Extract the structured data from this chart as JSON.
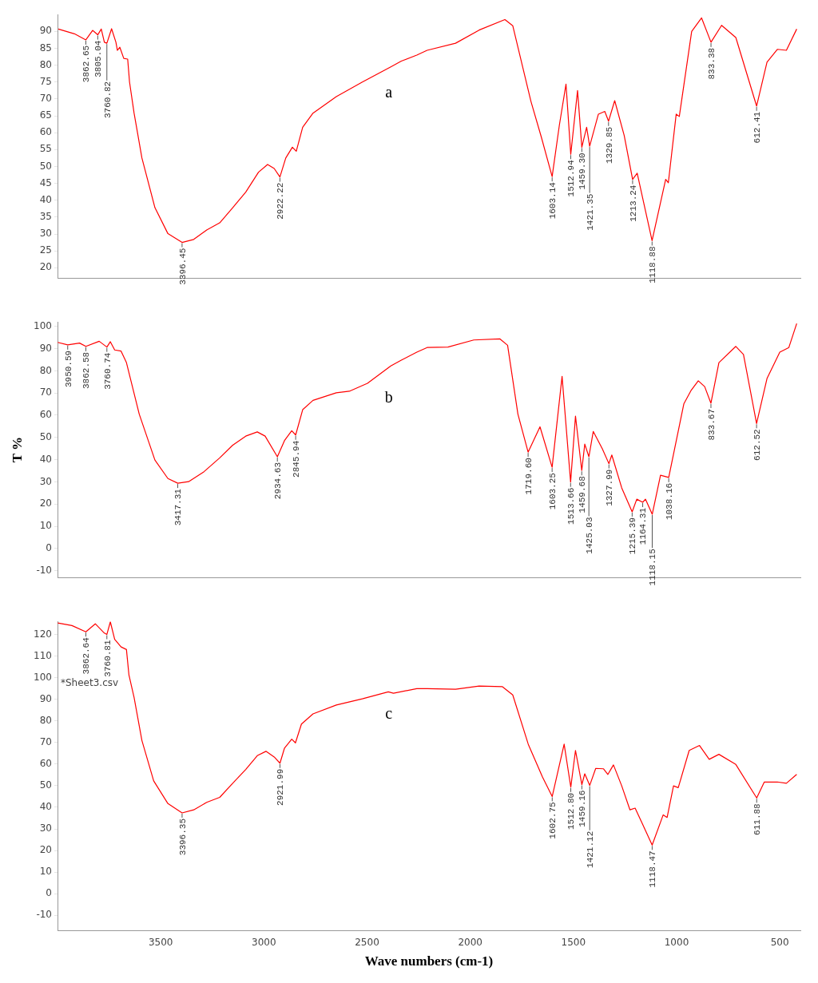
{
  "chart_data": [
    {
      "type": "line",
      "xlim": [
        4000,
        400
      ],
      "ylim": [
        17,
        95
      ],
      "yticks": [
        20,
        25,
        30,
        35,
        40,
        45,
        50,
        55,
        60,
        65,
        70,
        75,
        80,
        85,
        90
      ],
      "tick_labels": "y",
      "x": [
        3996,
        3918,
        3862.65,
        3830,
        3805.04,
        3788,
        3773,
        3760.82,
        3738,
        3717,
        3710,
        3698,
        3679,
        3660,
        3651,
        3629,
        3591,
        3528,
        3465,
        3396.45,
        3340,
        3277,
        3214,
        3151,
        3088,
        3026,
        2982,
        2950,
        2922.22,
        2894,
        2862,
        2843,
        2812,
        2762,
        2649,
        2523,
        2385,
        2334,
        2259,
        2209,
        2071,
        1957,
        1832,
        1794,
        1706,
        1656,
        1603.14,
        1568,
        1536,
        1512.94,
        1480,
        1459.3,
        1436,
        1421.35,
        1379,
        1348,
        1329.85,
        1300,
        1254,
        1213.24,
        1191,
        1118.88,
        1053,
        1040,
        1002,
        987,
        927,
        879,
        833.38,
        782,
        713,
        612.41,
        562,
        512,
        468,
        418
      ],
      "series": [
        {
          "color": "#ff0000",
          "values": [
            90.7,
            89.3,
            87.5,
            90.3,
            89,
            90.7,
            86.8,
            86.5,
            90.8,
            86.8,
            84.4,
            85.3,
            82,
            81.8,
            75,
            65.8,
            52.5,
            37.8,
            30.1,
            27.5,
            28.4,
            31.2,
            33.3,
            37.8,
            42.4,
            48.3,
            50.6,
            49.4,
            46.9,
            52.5,
            55.7,
            54.5,
            61.6,
            65.8,
            70.7,
            75,
            79.5,
            81.2,
            83,
            84.4,
            86.5,
            90.4,
            93.5,
            91.7,
            69.3,
            58.8,
            47,
            62.3,
            74.4,
            53.6,
            72.5,
            55.7,
            61.6,
            56,
            65.5,
            66.3,
            63.4,
            69.5,
            59.2,
            46.2,
            48,
            28,
            46.2,
            45.2,
            65.5,
            64.8,
            90,
            94,
            86.8,
            91.8,
            88.2,
            67.9,
            80.9,
            84.7,
            84.4,
            90.7
          ]
        }
      ],
      "annotations": [
        "a",
        {
          "text": "3862.65",
          "x": 3862.65,
          "y": 87.5
        },
        {
          "text": "3805.04",
          "x": 3805.04,
          "y": 89
        },
        {
          "text": "3760.82",
          "x": 3760.82,
          "y": 86.5
        },
        {
          "text": "3396.45",
          "x": 3396.45,
          "y": 27.5
        },
        {
          "text": "2922.22",
          "x": 2922.22,
          "y": 46.9
        },
        {
          "text": "1603.14",
          "x": 1603.14,
          "y": 47
        },
        {
          "text": "1512.94",
          "x": 1512.94,
          "y": 53.6
        },
        {
          "text": "1459.30",
          "x": 1459.3,
          "y": 55.7
        },
        {
          "text": "1421.35",
          "x": 1421.35,
          "y": 56
        },
        {
          "text": "1329.85",
          "x": 1329.85,
          "y": 63.4
        },
        {
          "text": "1213.24",
          "x": 1213.24,
          "y": 46.2
        },
        {
          "text": "1118.88",
          "x": 1118.88,
          "y": 28
        },
        {
          "text": "833.38",
          "x": 833.38,
          "y": 86.8
        },
        {
          "text": "612.41",
          "x": 612.41,
          "y": 67.9
        }
      ]
    },
    {
      "type": "line",
      "xlim": [
        4000,
        400
      ],
      "ylim": [
        -13,
        102
      ],
      "yticks": [
        -10,
        0,
        10,
        20,
        30,
        40,
        50,
        60,
        70,
        80,
        90,
        100
      ],
      "tick_labels": "y",
      "ylabel": "T %",
      "x": [
        3999,
        3950.59,
        3893,
        3862.58,
        3798,
        3760.74,
        3744,
        3723,
        3692,
        3666,
        3604,
        3528,
        3465,
        3417.31,
        3365,
        3290,
        3214,
        3151,
        3088,
        3032,
        2994,
        2934.63,
        2900,
        2865,
        2845.94,
        2812,
        2762,
        2649,
        2586,
        2498,
        2385,
        2334,
        2259,
        2209,
        2108,
        1983,
        1857,
        1819,
        1769,
        1719.6,
        1662,
        1603.25,
        1555,
        1513.66,
        1490,
        1459.68,
        1445,
        1425.03,
        1404,
        1360,
        1327.99,
        1314,
        1266,
        1215.39,
        1193,
        1164.31,
        1151,
        1118.15,
        1078,
        1038.16,
        965,
        929,
        895,
        864,
        833.67,
        795,
        713,
        676,
        612.52,
        562,
        500,
        456,
        418
      ],
      "series": [
        {
          "color": "#ff0000",
          "values": [
            92.8,
            91.7,
            92.5,
            91,
            93.3,
            90.7,
            93.1,
            89.4,
            88.9,
            83.7,
            60.5,
            39.8,
            31.5,
            29.4,
            30.1,
            34.6,
            40.8,
            46.5,
            50.6,
            52.5,
            50.6,
            41.3,
            48.6,
            53,
            51.1,
            62.5,
            66.7,
            70.1,
            70.8,
            74.4,
            82.2,
            84.8,
            88.4,
            90.5,
            90.7,
            93.9,
            94.4,
            91.5,
            60.5,
            43.4,
            54.8,
            36.6,
            77.5,
            29.9,
            59.6,
            35.1,
            47,
            41.3,
            52.7,
            44.9,
            38.2,
            42.1,
            27.3,
            16.5,
            22.2,
            20.8,
            22.2,
            15.4,
            33,
            32,
            65.1,
            71.3,
            75.5,
            72.9,
            65.4,
            83.7,
            91,
            87.4,
            56.3,
            76.5,
            88.4,
            90.5,
            101.3
          ]
        }
      ],
      "annotations": [
        "b",
        {
          "text": "3950.59",
          "x": 3950.59,
          "y": 91.7
        },
        {
          "text": "3862.58",
          "x": 3862.58,
          "y": 91
        },
        {
          "text": "3760.74",
          "x": 3760.74,
          "y": 90.7
        },
        {
          "text": "3417.31",
          "x": 3417.31,
          "y": 29.4
        },
        {
          "text": "2934.63",
          "x": 2934.63,
          "y": 41.3
        },
        {
          "text": "2845.94",
          "x": 2845.94,
          "y": 51.1
        },
        {
          "text": "1719.60",
          "x": 1719.6,
          "y": 43.4
        },
        {
          "text": "1603.25",
          "x": 1603.25,
          "y": 36.6
        },
        {
          "text": "1513.66",
          "x": 1513.66,
          "y": 29.9
        },
        {
          "text": "1459.68",
          "x": 1459.68,
          "y": 35.1
        },
        {
          "text": "1425.03",
          "x": 1425.03,
          "y": 41.3
        },
        {
          "text": "1327.99",
          "x": 1327.99,
          "y": 38.2
        },
        {
          "text": "1215.39",
          "x": 1215.39,
          "y": 16.5
        },
        {
          "text": "1164.31",
          "x": 1164.31,
          "y": 20.8
        },
        {
          "text": "1118.15",
          "x": 1118.15,
          "y": 15.4
        },
        {
          "text": "1038.16",
          "x": 1038.16,
          "y": 32
        },
        {
          "text": "833.67",
          "x": 833.67,
          "y": 65.4
        },
        {
          "text": "612.52",
          "x": 612.52,
          "y": 56.3
        }
      ]
    },
    {
      "type": "line",
      "xlim": [
        4000,
        400
      ],
      "ylim": [
        -17,
        126
      ],
      "yticks": [
        -10,
        0,
        10,
        20,
        30,
        40,
        50,
        60,
        70,
        80,
        90,
        100,
        110,
        120
      ],
      "xticks": [
        3500,
        3000,
        2500,
        2000,
        1500,
        1000,
        500
      ],
      "xlabel": "Wave numbers (cm-1)",
      "x": [
        3999,
        3930,
        3862.64,
        3817,
        3773,
        3760.81,
        3744,
        3723,
        3692,
        3666,
        3654,
        3629,
        3591,
        3534,
        3465,
        3396.35,
        3340,
        3277,
        3214,
        3151,
        3088,
        3032,
        2990,
        2950,
        2921.99,
        2900,
        2865,
        2847,
        2818,
        2762,
        2649,
        2523,
        2397,
        2372,
        2259,
        2209,
        2071,
        1957,
        1844,
        1794,
        1719,
        1650,
        1602.75,
        1545,
        1512.8,
        1490,
        1459.16,
        1445,
        1421.12,
        1392,
        1354,
        1333,
        1306,
        1266,
        1226,
        1201,
        1166,
        1118.47,
        1065,
        1046,
        1015,
        992,
        939,
        889,
        842,
        795,
        713,
        611.88,
        575,
        512,
        468,
        418
      ],
      "series": [
        {
          "color": "#ff0000",
          "values": [
            125.3,
            124.1,
            121.2,
            124.9,
            120.6,
            120,
            125.8,
            117.7,
            114.2,
            113,
            101.3,
            90.8,
            70.9,
            52.2,
            41.7,
            37.4,
            38.8,
            42.3,
            44.6,
            51.1,
            57.5,
            63.9,
            65.9,
            63.3,
            60.4,
            67.4,
            71.5,
            69.8,
            78.5,
            83.2,
            87.3,
            90.2,
            93.4,
            92.8,
            94.9,
            94.9,
            94.6,
            96.1,
            95.8,
            92,
            69.2,
            54,
            45,
            69.2,
            49.3,
            66.3,
            50.5,
            55.5,
            50.1,
            58,
            57.8,
            55.2,
            59.6,
            49.9,
            38.8,
            39.6,
            32.4,
            22.5,
            36.5,
            35.3,
            49.9,
            49.1,
            66.3,
            68.6,
            62.2,
            64.5,
            59.8,
            44.3,
            51.7,
            51.7,
            51.1,
            55.2
          ]
        }
      ],
      "annotations": [
        "c",
        "*Sheet3.csv",
        {
          "text": "3862.64",
          "x": 3862.64,
          "y": 121.2
        },
        {
          "text": "3760.81",
          "x": 3760.81,
          "y": 120
        },
        {
          "text": "3396.35",
          "x": 3396.35,
          "y": 37.4
        },
        {
          "text": "2921.99",
          "x": 2921.99,
          "y": 60.4
        },
        {
          "text": "1602.75",
          "x": 1602.75,
          "y": 45
        },
        {
          "text": "1512.80",
          "x": 1512.8,
          "y": 49.3
        },
        {
          "text": "1459.16",
          "x": 1459.16,
          "y": 50.5
        },
        {
          "text": "1421.12",
          "x": 1421.12,
          "y": 50.1
        },
        {
          "text": "1118.47",
          "x": 1118.47,
          "y": 22.5
        },
        {
          "text": "611.88",
          "x": 611.88,
          "y": 44.3
        }
      ]
    }
  ]
}
